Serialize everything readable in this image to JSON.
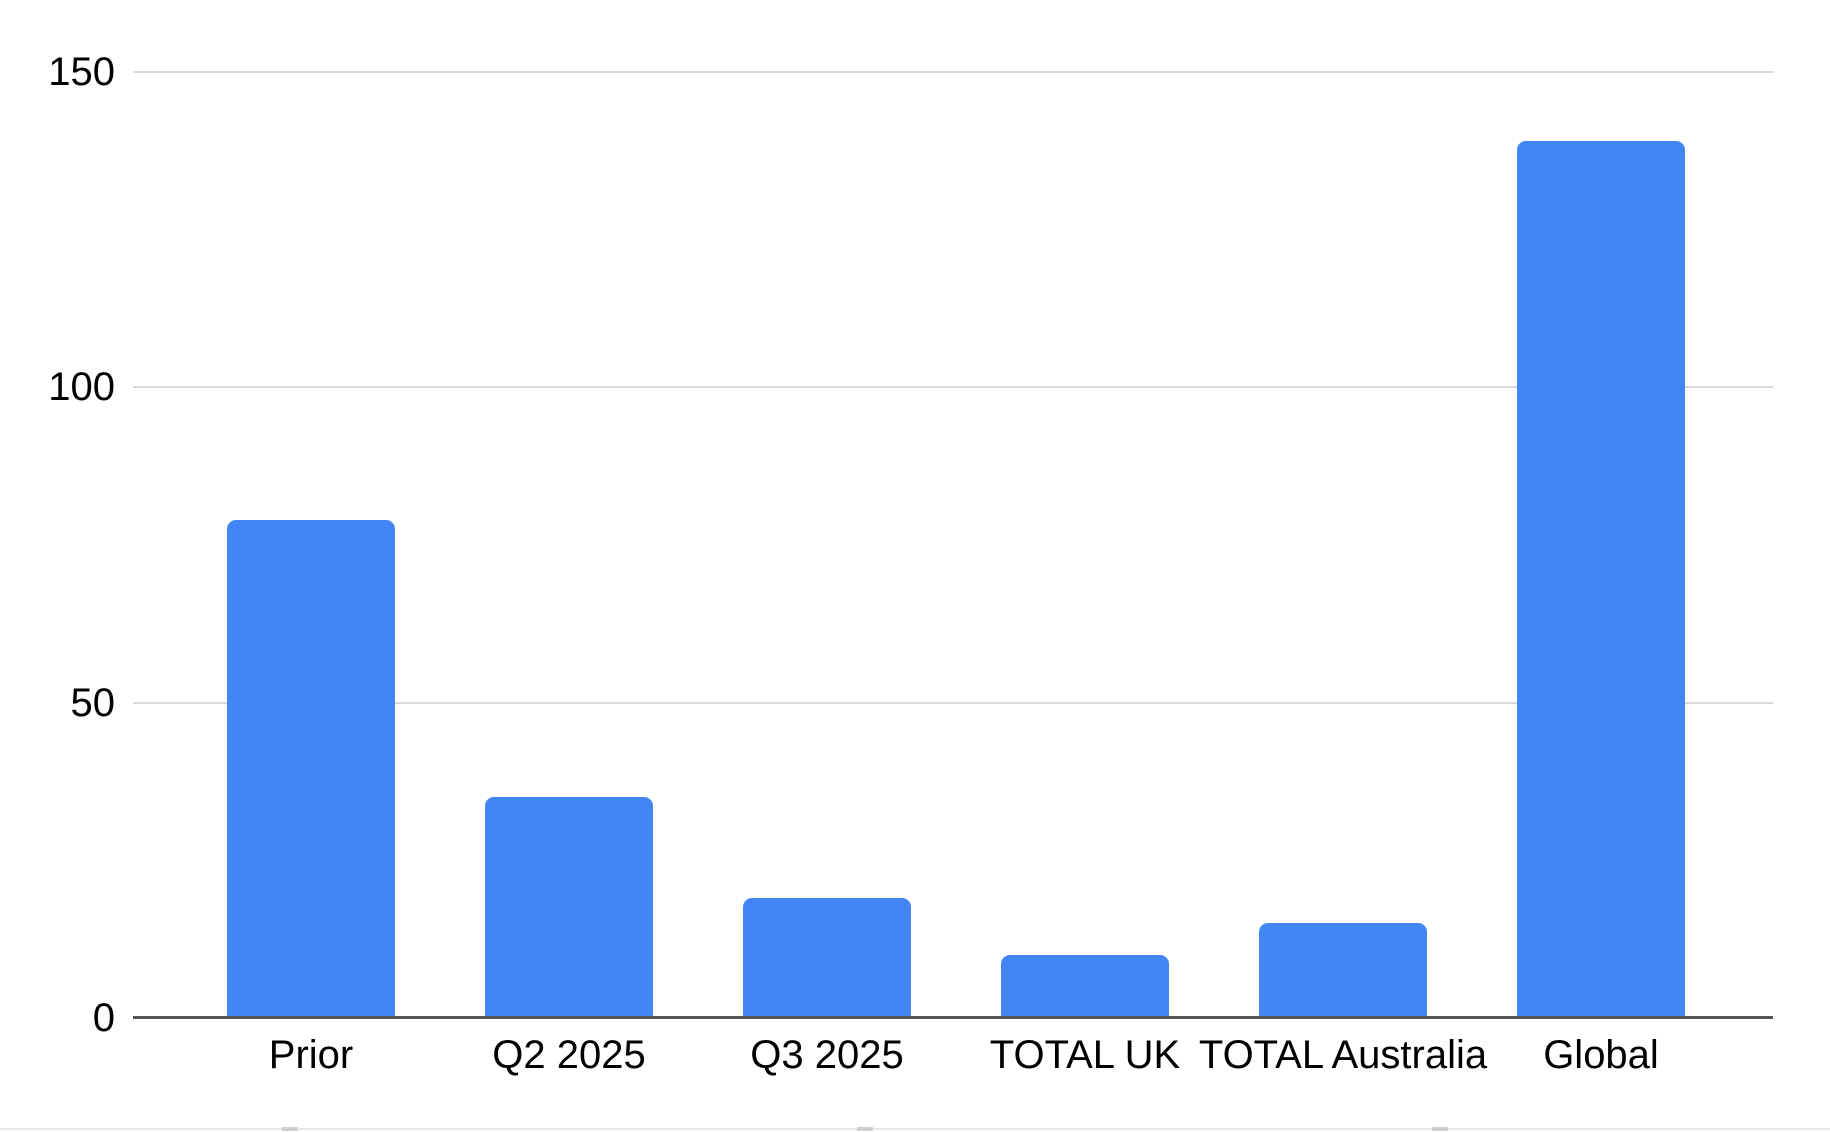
{
  "chart_data": {
    "type": "bar",
    "title": "",
    "xlabel": "",
    "ylabel": "",
    "categories": [
      "Prior",
      "Q2 2025",
      "Q3 2025",
      "TOTAL UK",
      "TOTAL Australia",
      "Global"
    ],
    "values": [
      79,
      35,
      19,
      10,
      15,
      139
    ],
    "ylim": [
      0,
      150
    ],
    "yticks": [
      0,
      50,
      100,
      150
    ],
    "grid": "horizontal",
    "legend_position": "none",
    "colors": {
      "bar": "#4285f4",
      "gridline": "#d9d9d9",
      "zero_axis": "#555555",
      "tick_label": "#000000",
      "background": "#ffffff",
      "sheet_edge": "#e9e9e9"
    }
  }
}
